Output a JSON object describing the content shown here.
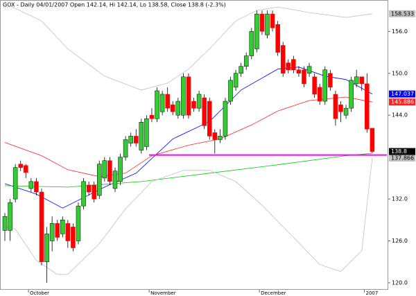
{
  "chart_data": {
    "type": "candlestick",
    "title": "GOX - Daily 04/01/2007 Open 142.14, Hi 142.14, Lo 138.58, Close 138.8 (-2.3%)",
    "categories": [
      null,
      null,
      null,
      null,
      null,
      "October",
      null,
      null,
      null,
      null,
      null,
      null,
      null,
      null,
      null,
      null,
      null,
      null,
      null,
      null,
      null,
      null,
      null,
      null,
      null,
      null,
      null,
      null,
      "November",
      null,
      null,
      null,
      null,
      null,
      null,
      null,
      null,
      null,
      null,
      null,
      null,
      null,
      null,
      null,
      null,
      null,
      null,
      null,
      null,
      "December",
      null,
      null,
      null,
      null,
      null,
      null,
      null,
      null,
      null,
      null,
      null,
      null,
      null,
      null,
      null,
      null,
      null,
      null,
      null,
      "2007",
      null
    ],
    "open": [
      127.5,
      127.5,
      132,
      137,
      136.8,
      133.5,
      134.5,
      133,
      123,
      126,
      128.5,
      127,
      128.5,
      128,
      126,
      131,
      134,
      134,
      132.5,
      135,
      137.5,
      133.5,
      134.5,
      138,
      140,
      141,
      139,
      139.5,
      144,
      143.5,
      144.5,
      147,
      145.5,
      144,
      144,
      149.5,
      146,
      145,
      146.5,
      146,
      141.5,
      140.5,
      141,
      146,
      148,
      150,
      151,
      152.5,
      153.5,
      158.5,
      155.5,
      158.5,
      157,
      154,
      151.5,
      152,
      150.5,
      150.5,
      150,
      149.5,
      148,
      146,
      150,
      147,
      145.5,
      144,
      145,
      148.5,
      149.5,
      148.5,
      142.14
    ],
    "high": [
      130,
      132,
      137,
      137.5,
      137,
      135,
      135,
      133.5,
      128,
      129.5,
      129,
      129.5,
      129,
      128.5,
      131.5,
      135,
      134.5,
      134.5,
      137.5,
      138,
      138,
      136.5,
      138.5,
      141,
      141.5,
      142,
      143.5,
      144,
      145,
      148,
      147.5,
      148,
      146,
      146.5,
      150,
      150,
      146.5,
      147.5,
      147,
      146.5,
      142,
      142,
      146.5,
      149.5,
      150.5,
      151.5,
      153,
      156.5,
      159,
      159,
      159,
      159,
      157.5,
      154.5,
      152,
      152.5,
      151,
      151,
      151.5,
      150,
      148.5,
      151,
      150.5,
      147.5,
      146,
      145.5,
      149.5,
      150.5,
      149.5,
      150,
      142.14
    ],
    "low": [
      126,
      126,
      131.5,
      136,
      135,
      133,
      132.5,
      122.5,
      120,
      124.5,
      126,
      126.5,
      125,
      124.5,
      125.5,
      130.5,
      132.5,
      131.5,
      132,
      134.5,
      134,
      133,
      134,
      137.5,
      139.5,
      139.5,
      138.5,
      139,
      143,
      143,
      144,
      144.5,
      144,
      143.5,
      143.5,
      143.5,
      144.5,
      144.5,
      142,
      140.5,
      138.5,
      140,
      140.5,
      145.5,
      147.5,
      149.5,
      150.5,
      152,
      153,
      155.5,
      155,
      156,
      152.5,
      149.5,
      150,
      150,
      149.5,
      148,
      149.5,
      146.5,
      145.5,
      145.5,
      147.5,
      142.5,
      143,
      143.5,
      144.5,
      148,
      147.5,
      141.5,
      138.58
    ],
    "close": [
      129.5,
      131.5,
      136.5,
      136.5,
      135.8,
      134.5,
      133,
      123,
      127,
      128.5,
      126.5,
      129,
      126,
      125,
      131,
      134.5,
      133,
      132,
      137,
      137.5,
      134.5,
      136,
      138,
      140.5,
      141,
      140,
      143,
      143.5,
      143.5,
      147.5,
      147,
      145,
      144.5,
      146,
      149.5,
      144,
      145,
      147,
      142.5,
      141,
      140.5,
      141,
      146,
      149,
      150,
      151,
      152.5,
      156,
      158.5,
      156,
      158.5,
      156.5,
      153,
      150,
      150.5,
      150.5,
      150,
      148.5,
      151,
      147,
      146,
      150.5,
      148,
      143.5,
      144.5,
      145,
      149,
      149.5,
      148.5,
      142,
      138.8
    ],
    "up_color": "#33cc33",
    "down_color": "#ff0000",
    "close_label_color": "#000000",
    "overlays": [
      {
        "color": "#c0c0c0",
        "x": [
          0,
          7,
          12,
          19,
          26,
          31,
          35,
          39,
          44,
          48,
          52,
          58,
          65,
          70
        ],
        "values": [
          160,
          157.5,
          153.5,
          149.6,
          147.6,
          148.6,
          150.6,
          153.5,
          157.5,
          159,
          159.5,
          158.7,
          158,
          158.533
        ]
      },
      {
        "color": "#0000ff",
        "x": [
          0,
          6,
          11,
          19,
          25,
          32,
          39,
          45,
          52,
          56,
          61,
          65,
          70
        ],
        "values": [
          134.2,
          132.7,
          130.7,
          133.7,
          135.7,
          140.6,
          143.1,
          147.6,
          150.6,
          150.9,
          149.6,
          149.1,
          147.037
        ]
      },
      {
        "color": "#ff2020",
        "x": [
          0,
          7,
          12,
          18,
          23,
          28,
          35,
          41,
          47,
          52,
          58,
          65,
          70
        ],
        "values": [
          140.1,
          138.2,
          136.2,
          135.2,
          135.7,
          138.2,
          139.7,
          140.6,
          142.6,
          144.6,
          146.1,
          146.6,
          145.886
        ]
      },
      {
        "color": "#00cc00",
        "x": [
          0,
          12,
          26,
          39,
          52,
          65,
          70
        ],
        "values": [
          133.9,
          133.7,
          134.5,
          135.7,
          136.9,
          138.2,
          138.557
        ]
      },
      {
        "color": "#c0c0c0",
        "x": [
          0,
          2,
          6,
          10,
          12,
          18,
          23,
          28,
          34,
          39,
          44,
          49,
          55,
          60,
          64,
          68,
          70
        ],
        "values": [
          128,
          127.7,
          123.2,
          121.2,
          121.2,
          125.6,
          130.6,
          134.5,
          136.1,
          136.1,
          134.5,
          131.1,
          126.5,
          122.6,
          121.6,
          124.6,
          137.866
        ]
      }
    ],
    "support": 138.3,
    "support_color": "#ff00ff",
    "ylim": [
      119,
      160.5
    ],
    "yticks": [
      {
        "value": 120,
        "label": "120.0"
      },
      {
        "value": 126,
        "label": "126.0"
      },
      {
        "value": 132,
        "label": "132.0"
      },
      {
        "value": 144,
        "label": "144.0"
      },
      {
        "value": 150,
        "label": "150.0"
      },
      {
        "value": 156,
        "label": "156.0"
      }
    ]
  }
}
